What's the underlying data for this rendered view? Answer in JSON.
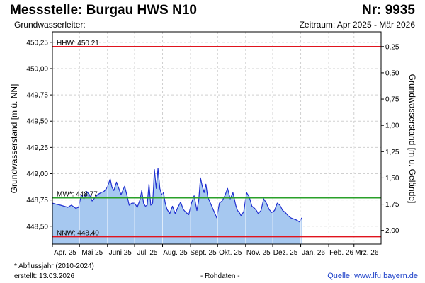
{
  "header": {
    "title": "Messstelle: Burgau HWS N10",
    "number": "Nr: 9935",
    "aquifer": "Grundwasserleiter:",
    "period": "Zeitraum: Apr 2025 - Mär 2026"
  },
  "footer": {
    "footnote": "* Abflussjahr (2010-2024)",
    "created": "erstellt:  13.03.2026",
    "raw": "- Rohdaten -",
    "source": "Quelle: www.lfu.bayern.de"
  },
  "colors": {
    "fill": "#a6c8f0",
    "line": "#1f2fd0",
    "hhw": "#e0141e",
    "nnw": "#e0141e",
    "mw": "#2aa02a",
    "grid": "#d0d0d0"
  },
  "chart_data": {
    "type": "area",
    "ylabel_left": "Grundwasserstand [m ü. NN]",
    "ylabel_right": "Grundwasserstand [m u. Gelände]",
    "ylim": [
      448.33,
      450.35
    ],
    "right_axis_reference": 450.46,
    "yticks_left": [
      "450,25",
      "450,00",
      "449,75",
      "449,50",
      "449,25",
      "449,00",
      "448,75",
      "448,50"
    ],
    "yticks_left_values": [
      450.25,
      450.0,
      449.75,
      449.5,
      449.25,
      449.0,
      448.75,
      448.5
    ],
    "yticks_right": [
      "0,25",
      "0,50",
      "0,75",
      "1,00",
      "1,25",
      "1,50",
      "1,75",
      "2,00"
    ],
    "yticks_right_values": [
      0.25,
      0.5,
      0.75,
      1.0,
      1.25,
      1.5,
      1.75,
      2.0
    ],
    "xlim": [
      "2025-04-01",
      "2026-03-31"
    ],
    "month_ticks": [
      "2025-04-01",
      "2025-05-01",
      "2025-06-01",
      "2025-07-01",
      "2025-08-01",
      "2025-09-01",
      "2025-10-01",
      "2025-11-01",
      "2025-12-01",
      "2026-01-01",
      "2026-02-01",
      "2026-03-01"
    ],
    "month_labels": [
      "Apr. 25",
      "Mai 25",
      "Juni 25",
      "Juli 25",
      "Aug. 25",
      "Sept. 25",
      "Okt. 25",
      "Nov. 25",
      "Dez. 25",
      "Jan. 26",
      "Feb. 26",
      "Mrz. 26"
    ],
    "reference_lines": [
      {
        "label": "HHW: 450.21",
        "value": 450.21,
        "kind": "hhw"
      },
      {
        "label": "MW*: 448.77",
        "value": 448.77,
        "kind": "mw"
      },
      {
        "label": "NNW: 448.40",
        "value": 448.4,
        "kind": "nnw"
      }
    ],
    "grid": true,
    "series": [
      {
        "x": [
          "2025-04-01",
          "2025-04-05",
          "2025-04-10",
          "2025-04-14",
          "2025-04-18",
          "2025-04-22",
          "2025-04-27",
          "2025-04-30",
          "2025-05-03",
          "2025-05-06",
          "2025-05-09",
          "2025-05-12",
          "2025-05-15",
          "2025-05-18",
          "2025-05-21",
          "2025-05-25",
          "2025-05-28",
          "2025-05-31",
          "2025-06-02",
          "2025-06-04",
          "2025-06-06",
          "2025-06-08",
          "2025-06-11",
          "2025-06-14",
          "2025-06-16",
          "2025-06-18",
          "2025-06-20",
          "2025-06-23",
          "2025-06-25",
          "2025-06-28",
          "2025-07-01",
          "2025-07-04",
          "2025-07-07",
          "2025-07-09",
          "2025-07-11",
          "2025-07-13",
          "2025-07-15",
          "2025-07-17",
          "2025-07-19",
          "2025-07-21",
          "2025-07-22",
          "2025-07-23",
          "2025-07-25",
          "2025-07-27",
          "2025-07-29",
          "2025-07-31",
          "2025-08-02",
          "2025-08-04",
          "2025-08-06",
          "2025-08-09",
          "2025-08-12",
          "2025-08-15",
          "2025-08-18",
          "2025-08-21",
          "2025-08-24",
          "2025-08-27",
          "2025-08-30",
          "2025-09-02",
          "2025-09-05",
          "2025-09-08",
          "2025-09-10",
          "2025-09-12",
          "2025-09-14",
          "2025-09-16",
          "2025-09-18",
          "2025-09-20",
          "2025-09-22",
          "2025-09-24",
          "2025-09-26",
          "2025-09-28",
          "2025-09-30",
          "2025-10-03",
          "2025-10-06",
          "2025-10-09",
          "2025-10-12",
          "2025-10-15",
          "2025-10-18",
          "2025-10-21",
          "2025-10-23",
          "2025-10-25",
          "2025-10-27",
          "2025-10-30",
          "2025-11-02",
          "2025-11-05",
          "2025-11-08",
          "2025-11-11",
          "2025-11-13",
          "2025-11-15",
          "2025-11-18",
          "2025-11-21",
          "2025-11-24",
          "2025-11-27",
          "2025-11-30",
          "2025-12-03",
          "2025-12-06",
          "2025-12-09",
          "2025-12-12",
          "2025-12-15",
          "2025-12-18",
          "2025-12-21",
          "2025-12-24",
          "2025-12-27",
          "2025-12-29",
          "2025-12-31",
          "2026-01-02"
        ],
        "y": [
          448.72,
          448.71,
          448.7,
          448.69,
          448.68,
          448.7,
          448.67,
          448.68,
          448.8,
          448.76,
          448.83,
          448.8,
          448.74,
          448.77,
          448.8,
          448.82,
          448.83,
          448.86,
          448.9,
          448.95,
          448.87,
          448.84,
          448.92,
          448.85,
          448.8,
          448.84,
          448.88,
          448.78,
          448.7,
          448.72,
          448.72,
          448.68,
          448.75,
          448.84,
          448.72,
          448.69,
          448.7,
          448.9,
          448.7,
          448.72,
          448.87,
          449.04,
          448.86,
          449.05,
          448.86,
          448.8,
          448.82,
          448.72,
          448.66,
          448.62,
          448.69,
          448.62,
          448.68,
          448.73,
          448.66,
          448.63,
          448.61,
          448.72,
          448.79,
          448.65,
          448.74,
          448.96,
          448.88,
          448.82,
          448.9,
          448.78,
          448.74,
          448.7,
          448.66,
          448.62,
          448.58,
          448.72,
          448.74,
          448.79,
          448.86,
          448.76,
          448.82,
          448.7,
          448.65,
          448.63,
          448.6,
          448.64,
          448.82,
          448.78,
          448.69,
          448.67,
          448.65,
          448.62,
          448.65,
          448.76,
          448.72,
          448.66,
          448.63,
          448.65,
          448.72,
          448.7,
          448.65,
          448.63,
          448.6,
          448.58,
          448.57,
          448.56,
          448.55,
          448.54,
          448.58
        ]
      }
    ]
  }
}
